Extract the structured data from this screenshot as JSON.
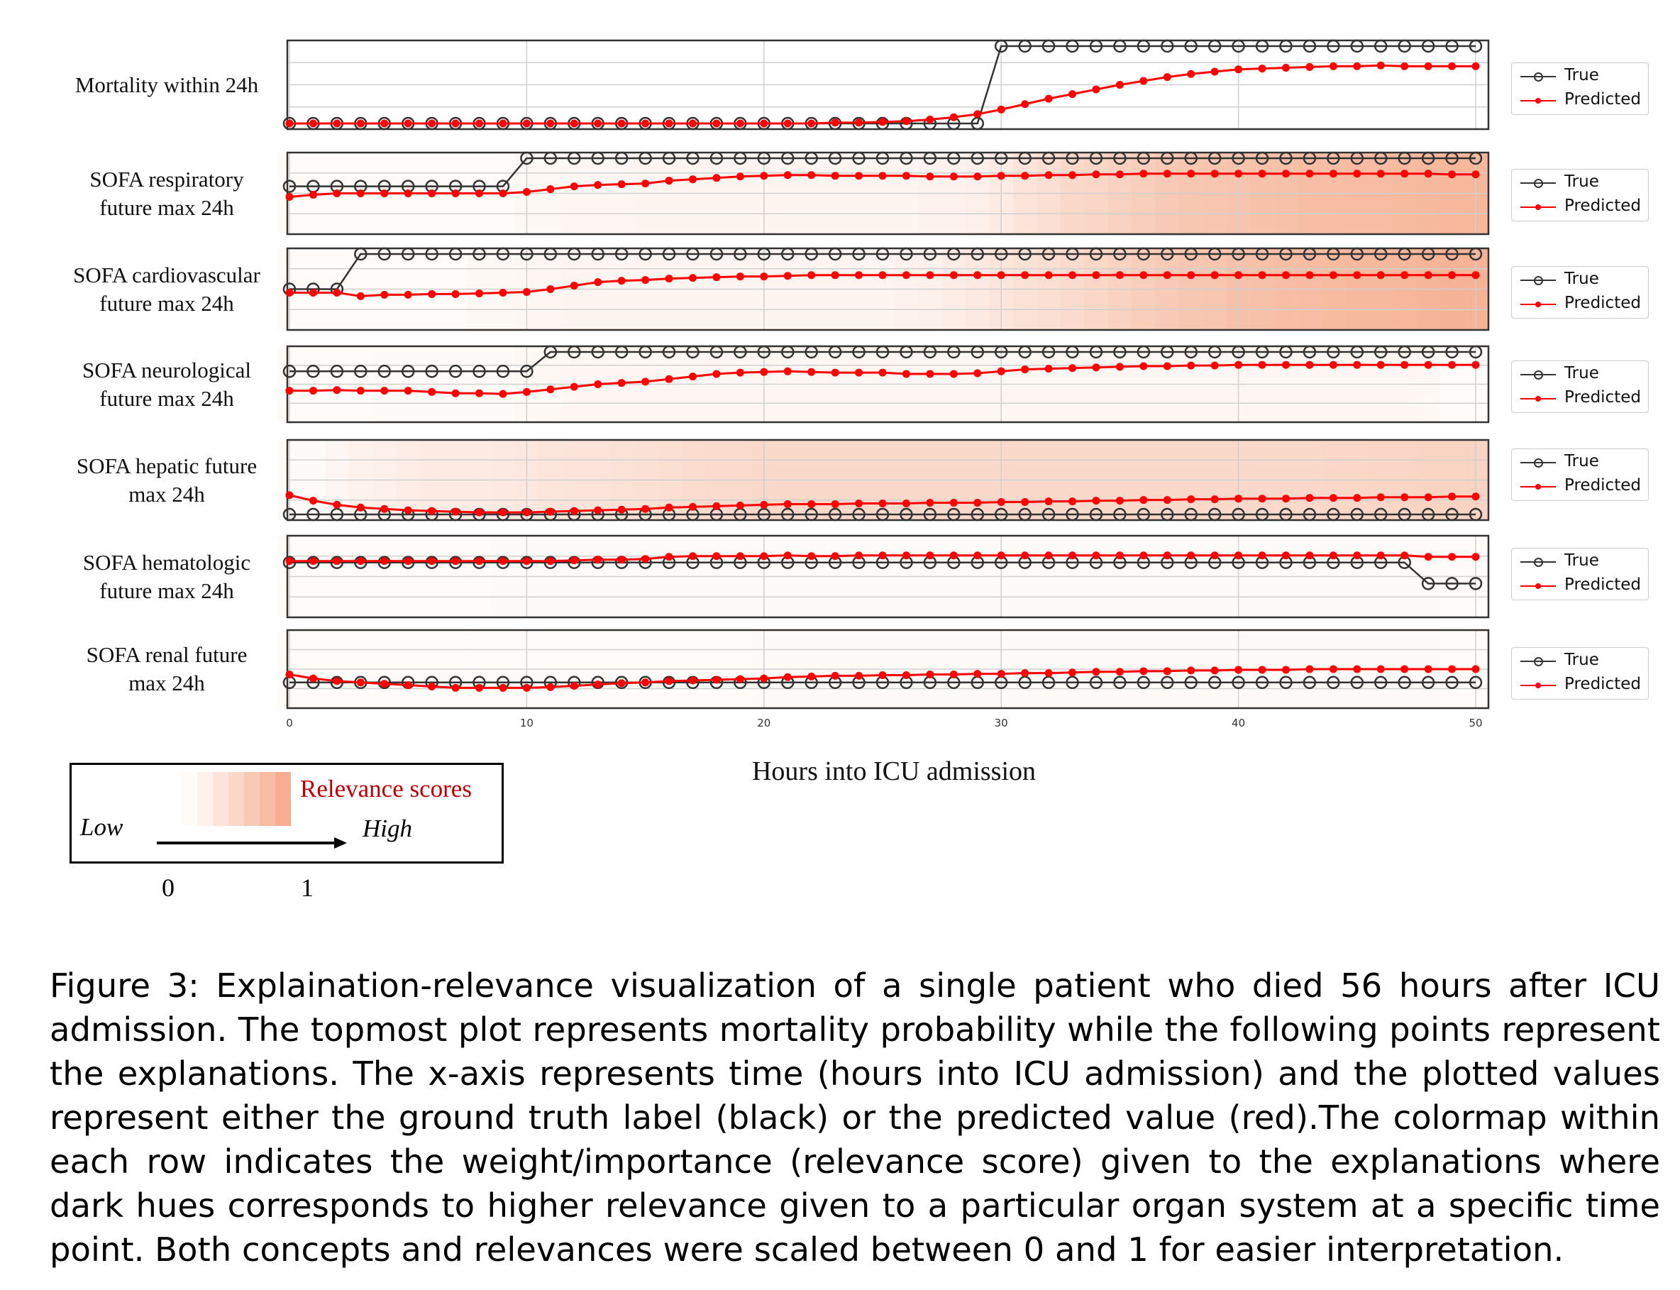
{
  "chart_data": {
    "type": "line",
    "xlabel": "Hours into ICU admission",
    "xlim": [
      0,
      50
    ],
    "xticks": [
      0,
      10,
      20,
      30,
      40,
      50
    ],
    "x": [
      0,
      1,
      2,
      3,
      4,
      5,
      6,
      7,
      8,
      9,
      10,
      11,
      12,
      13,
      14,
      15,
      16,
      17,
      18,
      19,
      20,
      21,
      22,
      23,
      24,
      25,
      26,
      27,
      28,
      29,
      30,
      31,
      32,
      33,
      34,
      35,
      36,
      37,
      38,
      39,
      40,
      41,
      42,
      43,
      44,
      45,
      46,
      47,
      48,
      49,
      50
    ],
    "legend": [
      "True",
      "Predicted"
    ],
    "colors": {
      "true": "#333333",
      "predicted": "#ff0000",
      "relevance": "#f4a582"
    },
    "rows": [
      {
        "label": "Mortality within 24h",
        "true": [
          0,
          0,
          0,
          0,
          0,
          0,
          0,
          0,
          0,
          0,
          0,
          0,
          0,
          0,
          0,
          0,
          0,
          0,
          0,
          0,
          0,
          0,
          0,
          0,
          0,
          0,
          0,
          0,
          0,
          0,
          1,
          1,
          1,
          1,
          1,
          1,
          1,
          1,
          1,
          1,
          1,
          1,
          1,
          1,
          1,
          1,
          1,
          1,
          1,
          1,
          1
        ],
        "predicted": [
          0,
          0,
          0,
          0,
          0,
          0,
          0,
          0,
          0,
          0,
          0,
          0,
          0,
          0,
          0,
          0,
          0,
          0,
          0,
          0,
          0,
          0,
          0,
          0.01,
          0.01,
          0.02,
          0.03,
          0.05,
          0.08,
          0.12,
          0.18,
          0.25,
          0.32,
          0.38,
          0.44,
          0.5,
          0.55,
          0.6,
          0.64,
          0.67,
          0.7,
          0.71,
          0.72,
          0.73,
          0.74,
          0.74,
          0.75,
          0.74,
          0.74,
          0.74,
          0.74
        ],
        "relevance": null
      },
      {
        "label": "SOFA respiratory future max 24h",
        "true": [
          0.6,
          0.6,
          0.6,
          0.6,
          0.6,
          0.6,
          0.6,
          0.6,
          0.6,
          0.6,
          1,
          1,
          1,
          1,
          1,
          1,
          1,
          1,
          1,
          1,
          1,
          1,
          1,
          1,
          1,
          1,
          1,
          1,
          1,
          1,
          1,
          1,
          1,
          1,
          1,
          1,
          1,
          1,
          1,
          1,
          1,
          1,
          1,
          1,
          1,
          1,
          1,
          1,
          1,
          1,
          1
        ],
        "predicted": [
          0.45,
          0.48,
          0.5,
          0.5,
          0.5,
          0.5,
          0.5,
          0.5,
          0.5,
          0.5,
          0.52,
          0.56,
          0.6,
          0.62,
          0.63,
          0.64,
          0.68,
          0.7,
          0.72,
          0.74,
          0.75,
          0.76,
          0.76,
          0.75,
          0.75,
          0.75,
          0.75,
          0.74,
          0.74,
          0.74,
          0.75,
          0.75,
          0.76,
          0.76,
          0.77,
          0.77,
          0.78,
          0.78,
          0.78,
          0.78,
          0.78,
          0.78,
          0.78,
          0.78,
          0.78,
          0.78,
          0.78,
          0.78,
          0.78,
          0.77,
          0.77
        ],
        "relevance": [
          0.05,
          0.05,
          0.05,
          0.05,
          0.05,
          0.05,
          0.05,
          0.05,
          0.05,
          0.05,
          0.08,
          0.08,
          0.1,
          0.1,
          0.1,
          0.12,
          0.12,
          0.12,
          0.12,
          0.12,
          0.12,
          0.12,
          0.12,
          0.12,
          0.12,
          0.12,
          0.12,
          0.14,
          0.14,
          0.18,
          0.22,
          0.3,
          0.36,
          0.42,
          0.46,
          0.5,
          0.55,
          0.6,
          0.62,
          0.64,
          0.66,
          0.68,
          0.7,
          0.72,
          0.72,
          0.74,
          0.74,
          0.76,
          0.78,
          0.8,
          0.8
        ]
      },
      {
        "label": "SOFA cardiovascular future max 24h",
        "true": [
          0.5,
          0.5,
          0.5,
          1,
          1,
          1,
          1,
          1,
          1,
          1,
          1,
          1,
          1,
          1,
          1,
          1,
          1,
          1,
          1,
          1,
          1,
          1,
          1,
          1,
          1,
          1,
          1,
          1,
          1,
          1,
          1,
          1,
          1,
          1,
          1,
          1,
          1,
          1,
          1,
          1,
          1,
          1,
          1,
          1,
          1,
          1,
          1,
          1,
          1,
          1,
          1
        ],
        "predicted": [
          0.45,
          0.45,
          0.45,
          0.4,
          0.42,
          0.42,
          0.43,
          0.43,
          0.44,
          0.45,
          0.46,
          0.5,
          0.55,
          0.6,
          0.62,
          0.63,
          0.65,
          0.66,
          0.67,
          0.68,
          0.68,
          0.69,
          0.7,
          0.7,
          0.7,
          0.7,
          0.7,
          0.7,
          0.7,
          0.7,
          0.7,
          0.7,
          0.7,
          0.7,
          0.7,
          0.7,
          0.7,
          0.7,
          0.7,
          0.7,
          0.7,
          0.7,
          0.7,
          0.7,
          0.7,
          0.7,
          0.7,
          0.7,
          0.7,
          0.7,
          0.7
        ],
        "relevance": [
          0.05,
          0.05,
          0.05,
          0.05,
          0.05,
          0.05,
          0.05,
          0.05,
          0.08,
          0.08,
          0.1,
          0.1,
          0.12,
          0.12,
          0.12,
          0.12,
          0.12,
          0.12,
          0.12,
          0.12,
          0.12,
          0.12,
          0.12,
          0.12,
          0.12,
          0.12,
          0.14,
          0.16,
          0.2,
          0.24,
          0.28,
          0.32,
          0.36,
          0.4,
          0.45,
          0.5,
          0.55,
          0.58,
          0.62,
          0.65,
          0.68,
          0.7,
          0.72,
          0.74,
          0.76,
          0.78,
          0.78,
          0.8,
          0.82,
          0.84,
          0.84
        ]
      },
      {
        "label": "SOFA neurological future max 24h",
        "true": [
          0.7,
          0.7,
          0.7,
          0.7,
          0.7,
          0.7,
          0.7,
          0.7,
          0.7,
          0.7,
          0.7,
          1,
          1,
          1,
          1,
          1,
          1,
          1,
          1,
          1,
          1,
          1,
          1,
          1,
          1,
          1,
          1,
          1,
          1,
          1,
          1,
          1,
          1,
          1,
          1,
          1,
          1,
          1,
          1,
          1,
          1,
          1,
          1,
          1,
          1,
          1,
          1,
          1,
          1,
          1,
          1
        ],
        "predicted": [
          0.4,
          0.4,
          0.41,
          0.4,
          0.4,
          0.4,
          0.38,
          0.36,
          0.36,
          0.35,
          0.38,
          0.42,
          0.46,
          0.5,
          0.52,
          0.54,
          0.58,
          0.62,
          0.66,
          0.68,
          0.69,
          0.7,
          0.69,
          0.68,
          0.68,
          0.68,
          0.66,
          0.66,
          0.66,
          0.67,
          0.7,
          0.73,
          0.74,
          0.75,
          0.76,
          0.77,
          0.78,
          0.78,
          0.79,
          0.79,
          0.8,
          0.8,
          0.8,
          0.8,
          0.8,
          0.8,
          0.8,
          0.8,
          0.8,
          0.8,
          0.8
        ],
        "relevance": [
          0.05,
          0.05,
          0.05,
          0.05,
          0.06,
          0.06,
          0.06,
          0.06,
          0.06,
          0.06,
          0.08,
          0.08,
          0.1,
          0.1,
          0.1,
          0.1,
          0.1,
          0.1,
          0.1,
          0.1,
          0.1,
          0.1,
          0.1,
          0.1,
          0.1,
          0.1,
          0.1,
          0.1,
          0.1,
          0.1,
          0.1,
          0.1,
          0.1,
          0.1,
          0.1,
          0.1,
          0.1,
          0.1,
          0.1,
          0.1,
          0.1,
          0.1,
          0.1,
          0.1,
          0.1,
          0.1,
          0.1,
          0.1,
          0.08,
          0.05,
          0.05
        ]
      },
      {
        "label": "SOFA hepatic future max 24h",
        "true": [
          0,
          0,
          0,
          0,
          0,
          0,
          0,
          0,
          0,
          0,
          0,
          0,
          0,
          0,
          0,
          0,
          0,
          0,
          0,
          0,
          0,
          0,
          0,
          0,
          0,
          0,
          0,
          0,
          0,
          0,
          0,
          0,
          0,
          0,
          0,
          0,
          0,
          0,
          0,
          0,
          0,
          0,
          0,
          0,
          0,
          0,
          0,
          0,
          0,
          0,
          0
        ],
        "predicted": [
          0.28,
          0.2,
          0.14,
          0.1,
          0.08,
          0.06,
          0.05,
          0.04,
          0.03,
          0.03,
          0.03,
          0.04,
          0.05,
          0.06,
          0.07,
          0.08,
          0.1,
          0.11,
          0.12,
          0.13,
          0.14,
          0.15,
          0.15,
          0.15,
          0.16,
          0.16,
          0.16,
          0.17,
          0.17,
          0.17,
          0.18,
          0.18,
          0.19,
          0.19,
          0.2,
          0.2,
          0.21,
          0.21,
          0.22,
          0.22,
          0.23,
          0.23,
          0.23,
          0.24,
          0.24,
          0.24,
          0.25,
          0.25,
          0.25,
          0.26,
          0.26
        ],
        "relevance": [
          0.06,
          0.06,
          0.1,
          0.15,
          0.18,
          0.2,
          0.22,
          0.22,
          0.22,
          0.24,
          0.26,
          0.28,
          0.3,
          0.3,
          0.32,
          0.34,
          0.36,
          0.38,
          0.4,
          0.4,
          0.42,
          0.42,
          0.42,
          0.42,
          0.42,
          0.42,
          0.42,
          0.42,
          0.42,
          0.42,
          0.42,
          0.42,
          0.42,
          0.42,
          0.42,
          0.42,
          0.42,
          0.42,
          0.42,
          0.42,
          0.42,
          0.42,
          0.42,
          0.42,
          0.44,
          0.45,
          0.46,
          0.46,
          0.48,
          0.48,
          0.48
        ]
      },
      {
        "label": "SOFA hematologic future max 24h",
        "true": [
          0.7,
          0.7,
          0.7,
          0.7,
          0.7,
          0.7,
          0.7,
          0.7,
          0.7,
          0.7,
          0.7,
          0.7,
          0.7,
          0.7,
          0.7,
          0.7,
          0.7,
          0.7,
          0.7,
          0.7,
          0.7,
          0.7,
          0.7,
          0.7,
          0.7,
          0.7,
          0.7,
          0.7,
          0.7,
          0.7,
          0.7,
          0.7,
          0.7,
          0.7,
          0.7,
          0.7,
          0.7,
          0.7,
          0.7,
          0.7,
          0.7,
          0.7,
          0.7,
          0.7,
          0.7,
          0.7,
          0.7,
          0.7,
          0.4,
          0.4,
          0.4
        ],
        "predicted": [
          0.72,
          0.72,
          0.72,
          0.72,
          0.72,
          0.72,
          0.72,
          0.72,
          0.72,
          0.72,
          0.72,
          0.72,
          0.73,
          0.74,
          0.74,
          0.75,
          0.78,
          0.79,
          0.79,
          0.79,
          0.79,
          0.8,
          0.79,
          0.79,
          0.8,
          0.8,
          0.8,
          0.8,
          0.8,
          0.8,
          0.8,
          0.8,
          0.8,
          0.8,
          0.8,
          0.8,
          0.8,
          0.8,
          0.8,
          0.8,
          0.8,
          0.8,
          0.8,
          0.8,
          0.8,
          0.8,
          0.8,
          0.8,
          0.78,
          0.78,
          0.78
        ],
        "relevance": [
          0.05,
          0.05,
          0.05,
          0.05,
          0.05,
          0.05,
          0.05,
          0.05,
          0.05,
          0.06,
          0.06,
          0.06,
          0.06,
          0.06,
          0.06,
          0.06,
          0.06,
          0.06,
          0.06,
          0.06,
          0.06,
          0.06,
          0.06,
          0.06,
          0.06,
          0.06,
          0.06,
          0.06,
          0.06,
          0.06,
          0.06,
          0.06,
          0.06,
          0.06,
          0.06,
          0.06,
          0.06,
          0.06,
          0.06,
          0.06,
          0.06,
          0.06,
          0.06,
          0.06,
          0.06,
          0.06,
          0.06,
          0.06,
          0.06,
          0.05,
          0.05
        ]
      },
      {
        "label": "SOFA renal future max 24h",
        "true": [
          0.3,
          0.3,
          0.3,
          0.3,
          0.3,
          0.3,
          0.3,
          0.3,
          0.3,
          0.3,
          0.3,
          0.3,
          0.3,
          0.3,
          0.3,
          0.3,
          0.3,
          0.3,
          0.3,
          0.3,
          0.3,
          0.3,
          0.3,
          0.3,
          0.3,
          0.3,
          0.3,
          0.3,
          0.3,
          0.3,
          0.3,
          0.3,
          0.3,
          0.3,
          0.3,
          0.3,
          0.3,
          0.3,
          0.3,
          0.3,
          0.3,
          0.3,
          0.3,
          0.3,
          0.3,
          0.3,
          0.3,
          0.3,
          0.3,
          0.3,
          0.3
        ],
        "predicted": [
          0.42,
          0.36,
          0.32,
          0.3,
          0.28,
          0.26,
          0.24,
          0.22,
          0.22,
          0.22,
          0.22,
          0.23,
          0.25,
          0.27,
          0.29,
          0.3,
          0.32,
          0.33,
          0.34,
          0.35,
          0.36,
          0.38,
          0.39,
          0.4,
          0.4,
          0.41,
          0.41,
          0.42,
          0.42,
          0.43,
          0.43,
          0.44,
          0.44,
          0.45,
          0.46,
          0.46,
          0.47,
          0.47,
          0.48,
          0.48,
          0.49,
          0.49,
          0.49,
          0.5,
          0.5,
          0.5,
          0.5,
          0.5,
          0.5,
          0.5,
          0.5
        ],
        "relevance": [
          0.05,
          0.05,
          0.05,
          0.05,
          0.05,
          0.05,
          0.05,
          0.05,
          0.05,
          0.05,
          0.05,
          0.05,
          0.05,
          0.05,
          0.05,
          0.05,
          0.05,
          0.05,
          0.05,
          0.05,
          0.06,
          0.06,
          0.06,
          0.06,
          0.06,
          0.06,
          0.06,
          0.06,
          0.06,
          0.06,
          0.06,
          0.06,
          0.06,
          0.06,
          0.06,
          0.06,
          0.06,
          0.06,
          0.06,
          0.06,
          0.06,
          0.06,
          0.06,
          0.06,
          0.06,
          0.06,
          0.06,
          0.06,
          0.06,
          0.05,
          0.05
        ]
      }
    ]
  },
  "row_labels": [
    {
      "line1": "Mortality within 24h",
      "line2": ""
    },
    {
      "line1": "SOFA respiratory",
      "line2": "future max 24h"
    },
    {
      "line1": "SOFA cardiovascular",
      "line2": "future max 24h"
    },
    {
      "line1": "SOFA neurological",
      "line2": "future max 24h"
    },
    {
      "line1": "SOFA hepatic future",
      "line2": "max 24h"
    },
    {
      "line1": "SOFA hematologic",
      "line2": "future max 24h"
    },
    {
      "line1": "SOFA renal future",
      "line2": "max 24h"
    }
  ],
  "legend_labels": {
    "true": "True",
    "predicted": "Predicted"
  },
  "xlabel": "Hours into ICU admission",
  "relevance_legend": {
    "title": "Relevance scores",
    "low": "Low",
    "high": "High",
    "tick_min": "0",
    "tick_max": "1"
  },
  "caption": "Figure 3: Explaination-relevance visualization of a single patient who died 56 hours after ICU admission. The topmost plot represents mortality probability while the following points represent the explanations. The x-axis represents time (hours into ICU admission) and the plotted values represent either the ground truth label (black) or the predicted value (red).The colormap within each row indicates the weight/importance (relevance score) given to the explanations where dark hues corresponds to higher relevance given to a particular organ system at a specific time point. Both concepts and relevances were scaled between 0 and 1 for easier interpretation."
}
